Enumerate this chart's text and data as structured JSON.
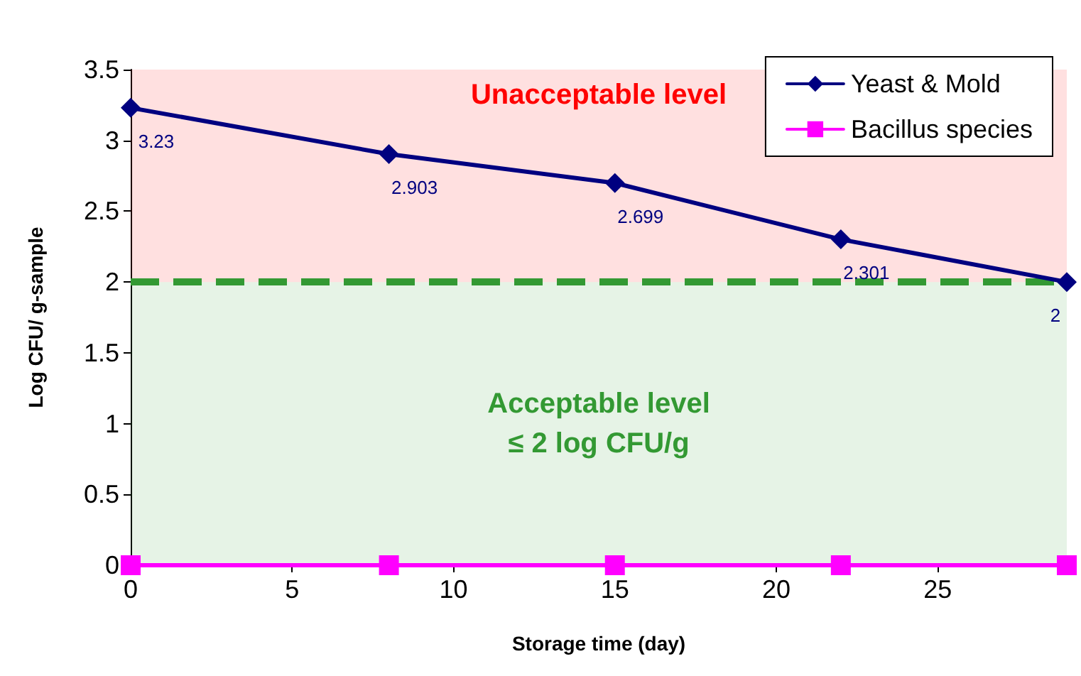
{
  "chart_data": {
    "type": "line",
    "xlabel": "Storage time (day)",
    "ylabel": "Log CFU/ g-sample",
    "x": [
      0,
      8,
      15,
      22,
      29
    ],
    "series": [
      {
        "name": "Yeast & Mold",
        "color": "#000080",
        "marker": "diamond",
        "values": [
          3.23,
          2.903,
          2.699,
          2.301,
          2
        ],
        "value_labels": [
          "3.23",
          "2.903",
          "2.699",
          "2.301",
          "2"
        ]
      },
      {
        "name": "Bacillus species",
        "color": "#ff00ff",
        "marker": "square",
        "values": [
          0,
          0,
          0,
          0,
          0
        ]
      }
    ],
    "xlim": [
      0,
      29
    ],
    "xticks": [
      0,
      5,
      10,
      15,
      20,
      25
    ],
    "ylim": [
      0,
      3.5
    ],
    "yticks": [
      0,
      0.5,
      1,
      1.5,
      2,
      2.5,
      3,
      3.5
    ],
    "bands": [
      {
        "axis": "y",
        "from": 2,
        "to": 3.5,
        "label": "Unacceptable level",
        "color": "#ff0000"
      },
      {
        "axis": "y",
        "from": 0,
        "to": 2,
        "label": "Acceptable level\n≤ 2 log CFU/g",
        "color": "#339933"
      }
    ],
    "ref_lines": [
      {
        "axis": "y",
        "value": 2,
        "color": "#339933",
        "line_style": "dashed"
      }
    ],
    "grid": false,
    "legend": "top right",
    "line_style": "solid"
  }
}
